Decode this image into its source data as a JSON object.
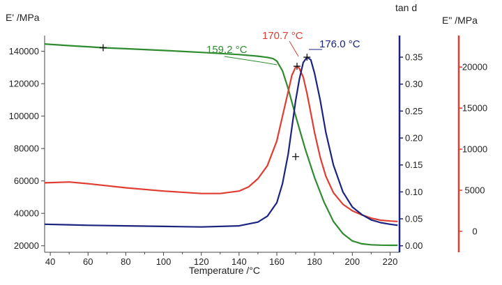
{
  "chart_data": {
    "type": "line",
    "xlabel": "Temperature /°C",
    "xlim": [
      37,
      225
    ],
    "x_ticks": [
      40,
      60,
      80,
      100,
      120,
      140,
      160,
      180,
      200,
      220
    ],
    "axes": {
      "left": {
        "label": "E' /MPa",
        "lim": [
          16000,
          148000
        ],
        "ticks": [
          20000,
          40000,
          60000,
          80000,
          100000,
          120000,
          140000
        ],
        "color": "#222222"
      },
      "tand": {
        "label": "tan d",
        "lim": [
          -0.012,
          0.385
        ],
        "ticks": [
          0.0,
          0.05,
          0.1,
          0.15,
          0.2,
          0.25,
          0.3,
          0.35
        ],
        "color": "#1a237e"
      },
      "right": {
        "label": "E\" /MPa",
        "lim": [
          -2550,
          23500
        ],
        "ticks": [
          0,
          5000,
          10000,
          15000,
          20000
        ],
        "color": "#e03c31"
      }
    },
    "series": [
      {
        "axis": "left",
        "color": "#2e8b2e",
        "x": [
          37,
          50,
          60,
          68,
          80,
          100,
          120,
          140,
          150,
          155,
          158,
          160,
          163,
          166,
          170,
          175,
          180,
          185,
          190,
          195,
          200,
          205,
          210,
          215,
          220,
          224
        ],
        "y": [
          144500,
          143500,
          142800,
          142200,
          141600,
          140500,
          139300,
          138000,
          137000,
          136200,
          135500,
          134000,
          128000,
          117000,
          100000,
          80000,
          62000,
          47000,
          35000,
          27500,
          23000,
          21200,
          20600,
          20400,
          20300,
          20300
        ]
      },
      {
        "axis": "right",
        "color": "#e03c31",
        "x": [
          37,
          50,
          60,
          80,
          100,
          120,
          130,
          140,
          145,
          150,
          155,
          160,
          163,
          166,
          168,
          170,
          171,
          172,
          174,
          176,
          178,
          180,
          183,
          186,
          190,
          195,
          200,
          205,
          210,
          215,
          220,
          224
        ],
        "y": [
          5900,
          6000,
          5800,
          5300,
          4900,
          4600,
          4600,
          4900,
          5400,
          6400,
          8000,
          11000,
          14000,
          17000,
          19000,
          20000,
          20100,
          19800,
          18800,
          16800,
          14400,
          12000,
          9000,
          6700,
          4700,
          3300,
          2500,
          2000,
          1600,
          1350,
          1250,
          1200
        ]
      },
      {
        "axis": "tand",
        "color": "#1a237e",
        "x": [
          37,
          50,
          60,
          80,
          100,
          120,
          140,
          150,
          155,
          160,
          163,
          166,
          168,
          170,
          172,
          174,
          176,
          178,
          180,
          183,
          186,
          190,
          195,
          200,
          205,
          210,
          215,
          220,
          224
        ],
        "y": [
          0.04,
          0.039,
          0.038,
          0.037,
          0.036,
          0.035,
          0.037,
          0.044,
          0.055,
          0.08,
          0.115,
          0.17,
          0.22,
          0.27,
          0.31,
          0.34,
          0.35,
          0.345,
          0.32,
          0.27,
          0.21,
          0.15,
          0.1,
          0.072,
          0.058,
          0.048,
          0.043,
          0.04,
          0.038
        ]
      }
    ],
    "annotations": [
      {
        "text": "159.2 °C",
        "color": "#2e8b2e"
      },
      {
        "text": "170.7 °C",
        "color": "#e03c31"
      },
      {
        "text": "176.0 °C",
        "color": "#1a237e"
      }
    ],
    "markers": [
      {
        "axis": "left",
        "x": 68,
        "y": 142200
      },
      {
        "axis": "left",
        "x": 170,
        "y": 75000
      },
      {
        "axis": "right",
        "x": 170.7,
        "y": 20100
      },
      {
        "axis": "tand",
        "x": 176.0,
        "y": 0.35
      }
    ]
  }
}
